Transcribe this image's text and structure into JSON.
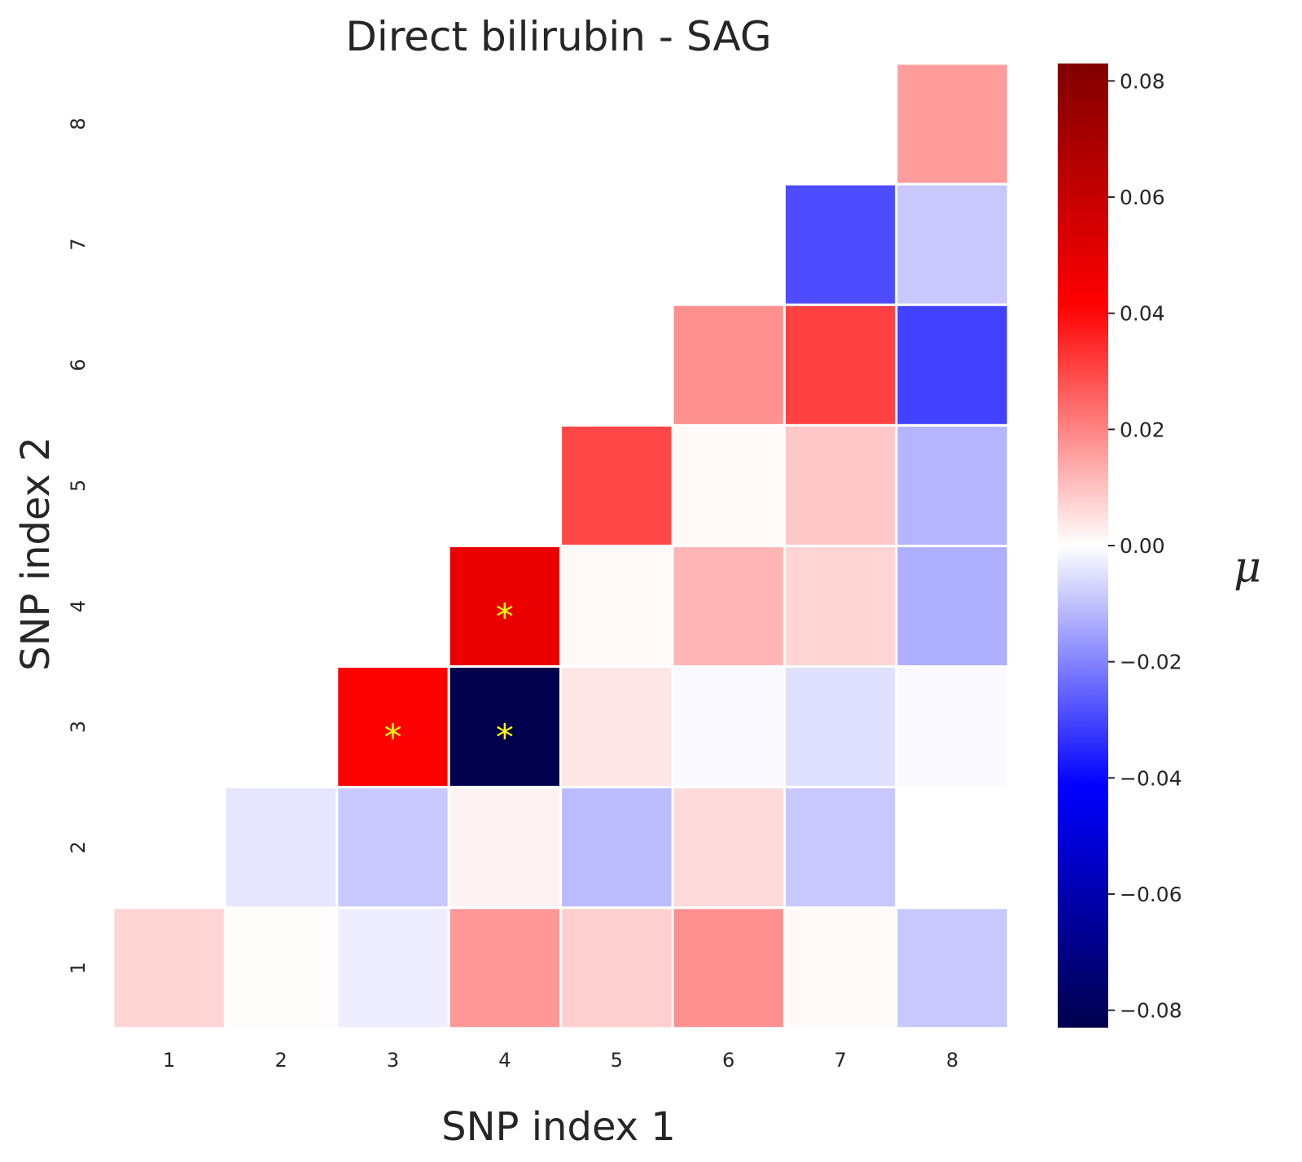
{
  "chart_data": {
    "type": "heatmap",
    "title": "Direct bilirubin - SAG",
    "xlabel": "SNP index 1",
    "ylabel": "SNP index 2",
    "x_categories": [
      "1",
      "2",
      "3",
      "4",
      "5",
      "6",
      "7",
      "8"
    ],
    "y_categories": [
      "1",
      "2",
      "3",
      "4",
      "5",
      "6",
      "7",
      "8"
    ],
    "colorbar": {
      "label": "μ",
      "colormap": "seismic",
      "vmin": -0.083,
      "vmax": 0.083,
      "ticks": [
        -0.08,
        -0.06,
        -0.04,
        -0.02,
        0.0,
        0.02,
        0.04,
        0.06,
        0.08
      ],
      "tick_labels": [
        "−0.08",
        "−0.06",
        "−0.04",
        "−0.02",
        "0.00",
        "0.02",
        "0.04",
        "0.06",
        "0.08"
      ]
    },
    "cells": [
      {
        "x": 1,
        "y": 1,
        "value": 0.007
      },
      {
        "x": 2,
        "y": 1,
        "value": 0.0005
      },
      {
        "x": 3,
        "y": 1,
        "value": -0.003
      },
      {
        "x": 4,
        "y": 1,
        "value": 0.017
      },
      {
        "x": 5,
        "y": 1,
        "value": 0.008
      },
      {
        "x": 6,
        "y": 1,
        "value": 0.018
      },
      {
        "x": 7,
        "y": 1,
        "value": 0.001
      },
      {
        "x": 8,
        "y": 1,
        "value": -0.009
      },
      {
        "x": 2,
        "y": 2,
        "value": -0.004
      },
      {
        "x": 3,
        "y": 2,
        "value": -0.009
      },
      {
        "x": 4,
        "y": 2,
        "value": 0.002
      },
      {
        "x": 5,
        "y": 2,
        "value": -0.011
      },
      {
        "x": 6,
        "y": 2,
        "value": 0.006
      },
      {
        "x": 7,
        "y": 2,
        "value": -0.009
      },
      {
        "x": 8,
        "y": 2,
        "value": 0.0
      },
      {
        "x": 3,
        "y": 3,
        "value": 0.042,
        "significant": true
      },
      {
        "x": 4,
        "y": 3,
        "value": -0.083,
        "significant": true
      },
      {
        "x": 5,
        "y": 3,
        "value": 0.004
      },
      {
        "x": 6,
        "y": 3,
        "value": -0.001
      },
      {
        "x": 7,
        "y": 3,
        "value": -0.005
      },
      {
        "x": 8,
        "y": 3,
        "value": -0.001
      },
      {
        "x": 4,
        "y": 4,
        "value": 0.048,
        "significant": true
      },
      {
        "x": 5,
        "y": 4,
        "value": 0.001
      },
      {
        "x": 6,
        "y": 4,
        "value": 0.012
      },
      {
        "x": 7,
        "y": 4,
        "value": 0.007
      },
      {
        "x": 8,
        "y": 4,
        "value": -0.013
      },
      {
        "x": 5,
        "y": 5,
        "value": 0.03
      },
      {
        "x": 6,
        "y": 5,
        "value": 0.001
      },
      {
        "x": 7,
        "y": 5,
        "value": 0.009
      },
      {
        "x": 8,
        "y": 5,
        "value": -0.012
      },
      {
        "x": 6,
        "y": 6,
        "value": 0.018
      },
      {
        "x": 7,
        "y": 6,
        "value": 0.031
      },
      {
        "x": 8,
        "y": 6,
        "value": -0.031
      },
      {
        "x": 7,
        "y": 7,
        "value": -0.029
      },
      {
        "x": 8,
        "y": 7,
        "value": -0.009
      },
      {
        "x": 8,
        "y": 8,
        "value": 0.016
      }
    ],
    "annotation_symbol": "*",
    "annotation_color": "#ffff00",
    "grid": false,
    "cell_border_color": "#ffffff"
  }
}
